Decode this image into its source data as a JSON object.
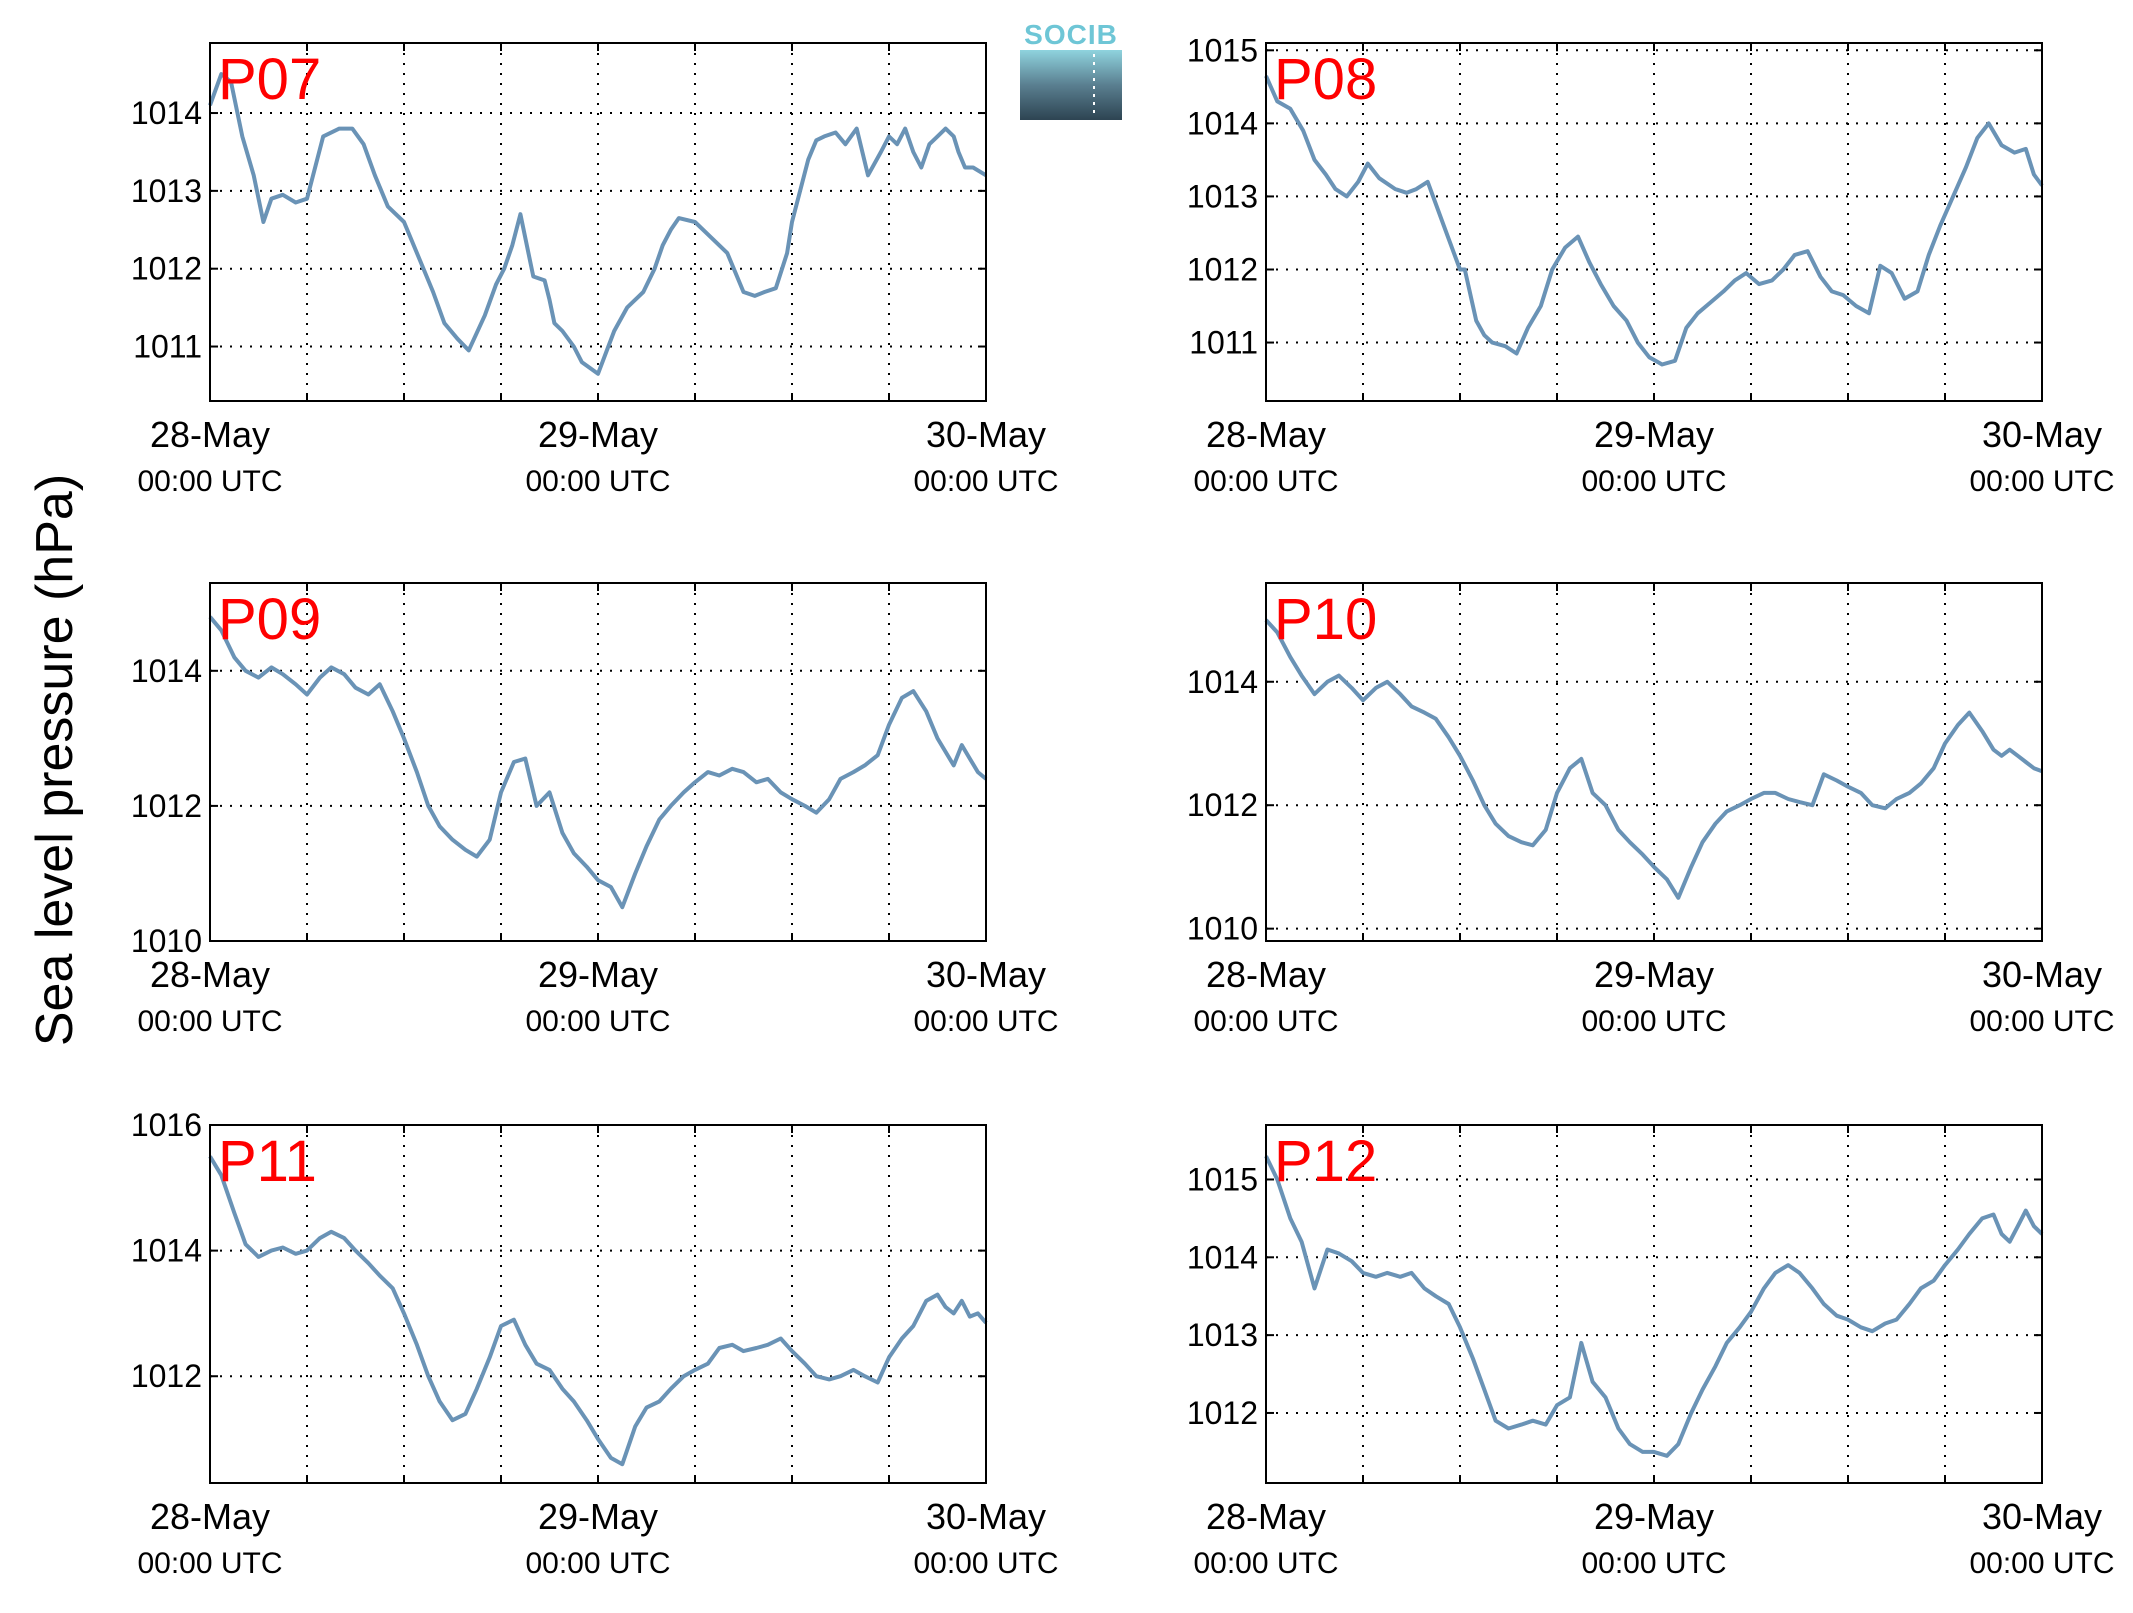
{
  "figure": {
    "ylabel": "Sea level pressure (hPa)",
    "logo_text": "SOCIB",
    "x_labels": [
      {
        "date": "28-May",
        "time": "00:00 UTC"
      },
      {
        "date": "29-May",
        "time": "00:00 UTC"
      },
      {
        "date": "30-May",
        "time": "00:00 UTC"
      }
    ]
  },
  "chart_data": [
    {
      "type": "line",
      "title": "P07",
      "xlim": [
        0,
        48
      ],
      "ylim": [
        1010.3,
        1014.9
      ],
      "yticks": [
        1011,
        1012,
        1013,
        1014
      ],
      "grid": true,
      "color": "#6a93b6",
      "x": [
        0,
        0.7,
        1.3,
        2,
        2.7,
        3.3,
        3.8,
        4.5,
        5.3,
        6,
        7,
        8,
        8.8,
        9.5,
        10.2,
        11,
        12,
        13,
        13.8,
        14.5,
        15.3,
        16,
        17,
        17.7,
        18.2,
        18.7,
        19.2,
        20,
        20.7,
        21,
        21.3,
        21.8,
        22.5,
        23,
        24,
        25,
        25.8,
        26.8,
        27.5,
        28,
        28.5,
        29,
        30,
        31,
        32,
        33,
        33.7,
        34.3,
        35,
        35.7,
        36,
        36.5,
        37,
        37.5,
        38,
        38.7,
        39.3,
        40,
        40.7,
        41.5,
        42,
        42.5,
        43,
        43.5,
        44,
        44.5,
        45,
        45.5,
        46,
        46.3,
        46.7,
        47.2,
        48
      ],
      "y": [
        1014.1,
        1014.5,
        1014.4,
        1013.7,
        1013.2,
        1012.6,
        1012.9,
        1012.95,
        1012.85,
        1012.9,
        1013.7,
        1013.8,
        1013.8,
        1013.6,
        1013.2,
        1012.8,
        1012.6,
        1012.1,
        1011.7,
        1011.3,
        1011.1,
        1010.95,
        1011.4,
        1011.8,
        1012.0,
        1012.3,
        1012.7,
        1011.9,
        1011.85,
        1011.6,
        1011.3,
        1011.2,
        1011.0,
        1010.8,
        1010.65,
        1011.2,
        1011.5,
        1011.7,
        1012.0,
        1012.3,
        1012.5,
        1012.65,
        1012.6,
        1012.4,
        1012.2,
        1011.7,
        1011.65,
        1011.7,
        1011.75,
        1012.2,
        1012.6,
        1013.0,
        1013.4,
        1013.65,
        1013.7,
        1013.75,
        1013.6,
        1013.8,
        1013.2,
        1013.5,
        1013.7,
        1013.6,
        1013.8,
        1013.5,
        1013.3,
        1013.6,
        1013.7,
        1013.8,
        1013.7,
        1013.5,
        1013.3,
        1013.3,
        1013.2
      ]
    },
    {
      "type": "line",
      "title": "P08",
      "xlim": [
        0,
        48
      ],
      "ylim": [
        1010.2,
        1015.1
      ],
      "yticks": [
        1011,
        1012,
        1013,
        1014,
        1015
      ],
      "grid": true,
      "color": "#6a93b6",
      "x": [
        0,
        0.7,
        1.5,
        2.3,
        3,
        3.7,
        4.3,
        5,
        5.7,
        6.3,
        7,
        8,
        8.7,
        9.3,
        10,
        11,
        12,
        12.3,
        12.7,
        13,
        13.5,
        14,
        14.8,
        15.5,
        16.2,
        17,
        17.7,
        18.5,
        19.3,
        20,
        20.7,
        21.5,
        22.3,
        23,
        23.7,
        24.5,
        25.3,
        26,
        26.7,
        27.5,
        28.3,
        29,
        29.7,
        30.5,
        31.3,
        32,
        32.7,
        33.5,
        34.3,
        35,
        35.7,
        36.5,
        37.3,
        38,
        38.7,
        39.5,
        40.3,
        41,
        41.7,
        42.5,
        43.3,
        44,
        44.7,
        45.5,
        46.3,
        47,
        47.5,
        48
      ],
      "y": [
        1014.65,
        1014.3,
        1014.2,
        1013.9,
        1013.5,
        1013.3,
        1013.1,
        1013.0,
        1013.2,
        1013.45,
        1013.25,
        1013.1,
        1013.05,
        1013.1,
        1013.2,
        1012.6,
        1012.0,
        1012.0,
        1011.6,
        1011.3,
        1011.1,
        1011.0,
        1010.95,
        1010.85,
        1011.2,
        1011.5,
        1012.0,
        1012.3,
        1012.45,
        1012.1,
        1011.8,
        1011.5,
        1011.3,
        1011.0,
        1010.8,
        1010.7,
        1010.75,
        1011.2,
        1011.4,
        1011.55,
        1011.7,
        1011.85,
        1011.95,
        1011.8,
        1011.85,
        1012.0,
        1012.2,
        1012.25,
        1011.9,
        1011.7,
        1011.65,
        1011.5,
        1011.4,
        1012.05,
        1011.95,
        1011.6,
        1011.7,
        1012.2,
        1012.6,
        1013.0,
        1013.4,
        1013.8,
        1014.0,
        1013.7,
        1013.6,
        1013.65,
        1013.3,
        1013.15
      ]
    },
    {
      "type": "line",
      "title": "P09",
      "xlim": [
        0,
        48
      ],
      "ylim": [
        1010,
        1015.3
      ],
      "yticks": [
        1010,
        1012,
        1014
      ],
      "grid": true,
      "color": "#6a93b6",
      "x": [
        0,
        0.7,
        1.5,
        2.2,
        3,
        3.8,
        4.5,
        5.3,
        6,
        6.8,
        7.5,
        8.3,
        9,
        9.8,
        10.5,
        11.3,
        12,
        12.8,
        13.5,
        14.2,
        15,
        15.8,
        16.5,
        17.3,
        18,
        18.8,
        19.5,
        20.2,
        21,
        21.8,
        22.5,
        23.3,
        24,
        24.8,
        25.5,
        26.3,
        27,
        27.8,
        28.5,
        29.3,
        30,
        30.8,
        31.5,
        32.3,
        33,
        33.8,
        34.5,
        35.3,
        36,
        36.8,
        37.5,
        38.3,
        39,
        39.8,
        40.5,
        41.3,
        42,
        42.8,
        43.5,
        44.3,
        45,
        45.5,
        46,
        46.5,
        47,
        47.5,
        48
      ],
      "y": [
        1014.8,
        1014.6,
        1014.2,
        1014.0,
        1013.9,
        1014.05,
        1013.95,
        1013.8,
        1013.65,
        1013.9,
        1014.05,
        1013.95,
        1013.75,
        1013.65,
        1013.8,
        1013.4,
        1013.0,
        1012.5,
        1012.0,
        1011.7,
        1011.5,
        1011.35,
        1011.25,
        1011.5,
        1012.2,
        1012.65,
        1012.7,
        1012.0,
        1012.2,
        1011.6,
        1011.3,
        1011.1,
        1010.9,
        1010.8,
        1010.5,
        1011.0,
        1011.4,
        1011.8,
        1012.0,
        1012.2,
        1012.35,
        1012.5,
        1012.45,
        1012.55,
        1012.5,
        1012.35,
        1012.4,
        1012.2,
        1012.1,
        1012.0,
        1011.9,
        1012.1,
        1012.4,
        1012.5,
        1012.6,
        1012.75,
        1013.2,
        1013.6,
        1013.7,
        1013.4,
        1013.0,
        1012.8,
        1012.6,
        1012.9,
        1012.7,
        1012.5,
        1012.4
      ]
    },
    {
      "type": "line",
      "title": "P10",
      "xlim": [
        0,
        48
      ],
      "ylim": [
        1009.8,
        1015.6
      ],
      "yticks": [
        1010,
        1012,
        1014
      ],
      "grid": true,
      "color": "#6a93b6",
      "x": [
        0,
        0.7,
        1.5,
        2.2,
        3,
        3.8,
        4.5,
        5.3,
        6,
        6.8,
        7.5,
        8.3,
        9,
        9.8,
        10.5,
        11.3,
        12,
        12.8,
        13.5,
        14.2,
        15,
        15.8,
        16.5,
        17.3,
        18,
        18.8,
        19.5,
        20.2,
        21,
        21.8,
        22.5,
        23.3,
        24,
        24.8,
        25.5,
        26.3,
        27,
        27.8,
        28.5,
        29.3,
        30,
        30.8,
        31.5,
        32.3,
        33,
        33.8,
        34.5,
        35.3,
        36,
        36.8,
        37.5,
        38.3,
        39,
        39.8,
        40.5,
        41.3,
        42,
        42.8,
        43.5,
        44.3,
        45,
        45.5,
        46,
        46.5,
        47,
        47.5,
        48
      ],
      "y": [
        1015.0,
        1014.8,
        1014.4,
        1014.1,
        1013.8,
        1014.0,
        1014.1,
        1013.9,
        1013.7,
        1013.9,
        1014.0,
        1013.8,
        1013.6,
        1013.5,
        1013.4,
        1013.1,
        1012.8,
        1012.4,
        1012.0,
        1011.7,
        1011.5,
        1011.4,
        1011.35,
        1011.6,
        1012.2,
        1012.6,
        1012.75,
        1012.2,
        1012.0,
        1011.6,
        1011.4,
        1011.2,
        1011.0,
        1010.8,
        1010.5,
        1011.0,
        1011.4,
        1011.7,
        1011.9,
        1012.0,
        1012.1,
        1012.2,
        1012.2,
        1012.1,
        1012.05,
        1012.0,
        1012.5,
        1012.4,
        1012.3,
        1012.2,
        1012.0,
        1011.95,
        1012.1,
        1012.2,
        1012.35,
        1012.6,
        1013.0,
        1013.3,
        1013.5,
        1013.2,
        1012.9,
        1012.8,
        1012.9,
        1012.8,
        1012.7,
        1012.6,
        1012.55
      ]
    },
    {
      "type": "line",
      "title": "P11",
      "xlim": [
        0,
        48
      ],
      "ylim": [
        1010.3,
        1016
      ],
      "yticks": [
        1012,
        1014,
        1016
      ],
      "grid": true,
      "color": "#6a93b6",
      "x": [
        0,
        0.7,
        1.5,
        2.2,
        3,
        3.8,
        4.5,
        5.3,
        6,
        6.8,
        7.5,
        8.3,
        9,
        9.8,
        10.5,
        11.3,
        12,
        12.8,
        13.5,
        14.2,
        15,
        15.8,
        16.5,
        17.3,
        18,
        18.8,
        19.5,
        20.2,
        21,
        21.8,
        22.5,
        23.3,
        24,
        24.8,
        25.5,
        26.3,
        27,
        27.8,
        28.5,
        29.3,
        30,
        30.8,
        31.5,
        32.3,
        33,
        33.8,
        34.5,
        35.3,
        36,
        36.8,
        37.5,
        38.3,
        39,
        39.8,
        40.5,
        41.3,
        42,
        42.8,
        43.5,
        44.3,
        45,
        45.5,
        46,
        46.5,
        47,
        47.5,
        48
      ],
      "y": [
        1015.5,
        1015.2,
        1014.6,
        1014.1,
        1013.9,
        1014.0,
        1014.05,
        1013.95,
        1014.0,
        1014.2,
        1014.3,
        1014.2,
        1014.0,
        1013.8,
        1013.6,
        1013.4,
        1013.0,
        1012.5,
        1012.0,
        1011.6,
        1011.3,
        1011.4,
        1011.8,
        1012.3,
        1012.8,
        1012.9,
        1012.5,
        1012.2,
        1012.1,
        1011.8,
        1011.6,
        1011.3,
        1011.0,
        1010.7,
        1010.6,
        1011.2,
        1011.5,
        1011.6,
        1011.8,
        1012.0,
        1012.1,
        1012.2,
        1012.45,
        1012.5,
        1012.4,
        1012.45,
        1012.5,
        1012.6,
        1012.4,
        1012.2,
        1012.0,
        1011.95,
        1012.0,
        1012.1,
        1012.0,
        1011.9,
        1012.3,
        1012.6,
        1012.8,
        1013.2,
        1013.3,
        1013.1,
        1013.0,
        1013.2,
        1012.95,
        1013.0,
        1012.85
      ]
    },
    {
      "type": "line",
      "title": "P12",
      "xlim": [
        0,
        48
      ],
      "ylim": [
        1011.1,
        1015.7
      ],
      "yticks": [
        1012,
        1013,
        1014,
        1015
      ],
      "grid": true,
      "color": "#6a93b6",
      "x": [
        0,
        0.7,
        1.5,
        2.2,
        3,
        3.8,
        4.5,
        5.3,
        6,
        6.8,
        7.5,
        8.3,
        9,
        9.8,
        10.5,
        11.3,
        12,
        12.8,
        13.5,
        14.2,
        15,
        15.8,
        16.5,
        17.3,
        18,
        18.8,
        19.5,
        20.2,
        21,
        21.8,
        22.5,
        23.3,
        24,
        24.8,
        25.5,
        26.3,
        27,
        27.8,
        28.5,
        29.3,
        30,
        30.8,
        31.5,
        32.3,
        33,
        33.8,
        34.5,
        35.3,
        36,
        36.8,
        37.5,
        38.3,
        39,
        39.8,
        40.5,
        41.3,
        42,
        42.8,
        43.5,
        44.3,
        45,
        45.5,
        46,
        46.5,
        47,
        47.5,
        48
      ],
      "y": [
        1015.3,
        1015.0,
        1014.5,
        1014.2,
        1013.6,
        1014.1,
        1014.05,
        1013.95,
        1013.8,
        1013.75,
        1013.8,
        1013.75,
        1013.8,
        1013.6,
        1013.5,
        1013.4,
        1013.1,
        1012.7,
        1012.3,
        1011.9,
        1011.8,
        1011.85,
        1011.9,
        1011.85,
        1012.1,
        1012.2,
        1012.9,
        1012.4,
        1012.2,
        1011.8,
        1011.6,
        1011.5,
        1011.5,
        1011.45,
        1011.6,
        1012.0,
        1012.3,
        1012.6,
        1012.9,
        1013.1,
        1013.3,
        1013.6,
        1013.8,
        1013.9,
        1013.8,
        1013.6,
        1013.4,
        1013.25,
        1013.2,
        1013.1,
        1013.05,
        1013.15,
        1013.2,
        1013.4,
        1013.6,
        1013.7,
        1013.9,
        1014.1,
        1014.3,
        1014.5,
        1014.55,
        1014.3,
        1014.2,
        1014.4,
        1014.6,
        1014.4,
        1014.3
      ]
    }
  ]
}
